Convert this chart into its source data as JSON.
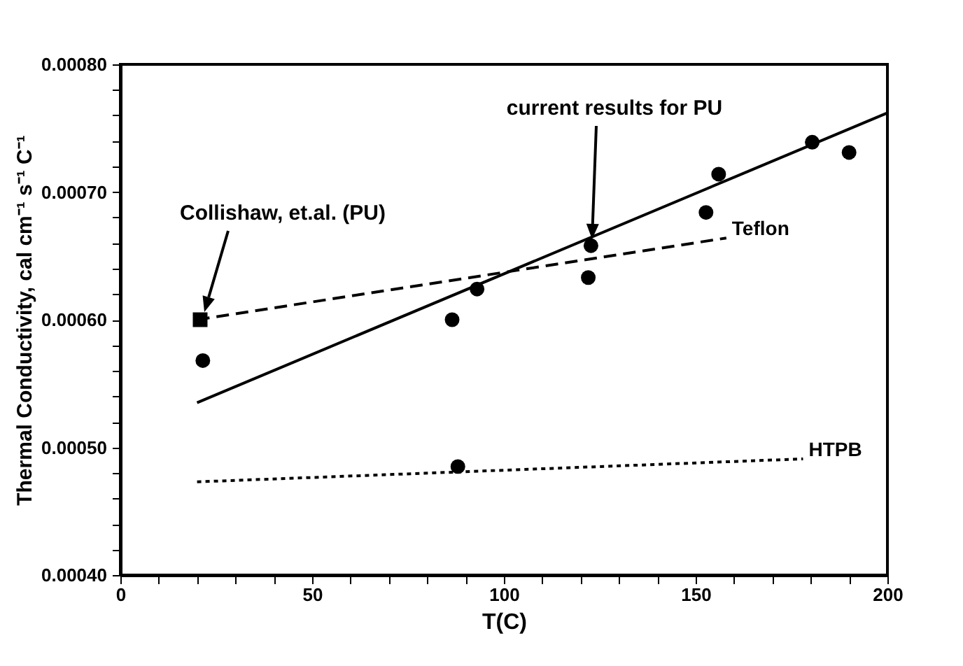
{
  "chart_data": {
    "type": "line",
    "xlabel": "T(C)",
    "ylabel": "Thermal Conductivity, cal cm⁻¹ s⁻¹ C⁻¹",
    "xlim": [
      0,
      200
    ],
    "ylim": [
      0.0004,
      0.0008
    ],
    "xticks": [
      0,
      {
        "value": 10,
        "label": null
      },
      {
        "value": 20,
        "label": null
      },
      {
        "value": 30,
        "label": null
      },
      {
        "value": 40,
        "label": null
      },
      50,
      {
        "value": 60,
        "label": null
      },
      {
        "value": 70,
        "label": null
      },
      {
        "value": 80,
        "label": null
      },
      {
        "value": 90,
        "label": null
      },
      100,
      {
        "value": 110,
        "label": null
      },
      {
        "value": 120,
        "label": null
      },
      {
        "value": 130,
        "label": null
      },
      {
        "value": 140,
        "label": null
      },
      150,
      {
        "value": 160,
        "label": null
      },
      {
        "value": 170,
        "label": null
      },
      {
        "value": 180,
        "label": null
      },
      {
        "value": 190,
        "label": null
      },
      200
    ],
    "yticks": [
      {
        "value": 0.0004,
        "label": "0.00040"
      },
      {
        "value": 0.00042,
        "label": null
      },
      {
        "value": 0.00044,
        "label": null
      },
      {
        "value": 0.00046,
        "label": null
      },
      {
        "value": 0.00048,
        "label": null
      },
      {
        "value": 0.0005,
        "label": "0.00050"
      },
      {
        "value": 0.00052,
        "label": null
      },
      {
        "value": 0.00054,
        "label": null
      },
      {
        "value": 0.00056,
        "label": null
      },
      {
        "value": 0.00058,
        "label": null
      },
      {
        "value": 0.0006,
        "label": "0.00060"
      },
      {
        "value": 0.00062,
        "label": null
      },
      {
        "value": 0.00064,
        "label": null
      },
      {
        "value": 0.00066,
        "label": null
      },
      {
        "value": 0.00068,
        "label": null
      },
      {
        "value": 0.0007,
        "label": "0.00070"
      },
      {
        "value": 0.00072,
        "label": null
      },
      {
        "value": 0.00074,
        "label": null
      },
      {
        "value": 0.00076,
        "label": null
      },
      {
        "value": 0.00078,
        "label": null
      },
      {
        "value": 0.0008,
        "label": "0.00080"
      }
    ],
    "grid": false,
    "series": [
      {
        "color": "#000000",
        "line_style": "solid",
        "x": [
          20,
          200
        ],
        "values": [
          0.000535,
          0.000762
        ]
      },
      {
        "type": "scatter",
        "color": "#000000",
        "marker": "circle",
        "x": [
          21.5,
          86.5,
          93,
          122,
          122.7,
          152.7,
          156,
          180.4,
          190
        ],
        "values": [
          0.000568,
          0.0006,
          0.000624,
          0.000633,
          0.000658,
          0.000684,
          0.000714,
          0.000739,
          0.000731
        ]
      },
      {
        "name": "Teflon",
        "color": "#000000",
        "line_style": "dashed",
        "x": [
          20,
          158
        ],
        "values": [
          0.0006,
          0.000664
        ]
      },
      {
        "type": "scatter",
        "color": "#000000",
        "marker": "square",
        "x": [
          20.8
        ],
        "values": [
          0.0006
        ]
      },
      {
        "name": "HTPB",
        "color": "#000000",
        "line_style": "dotted",
        "x": [
          20,
          178
        ],
        "values": [
          0.000473,
          0.000491
        ]
      },
      {
        "type": "scatter",
        "color": "#000000",
        "marker": "circle",
        "x": [
          88
        ],
        "values": [
          0.000485
        ]
      }
    ],
    "annotations": [
      "current results for PU",
      "Collishaw, et.al. (PU)"
    ]
  }
}
